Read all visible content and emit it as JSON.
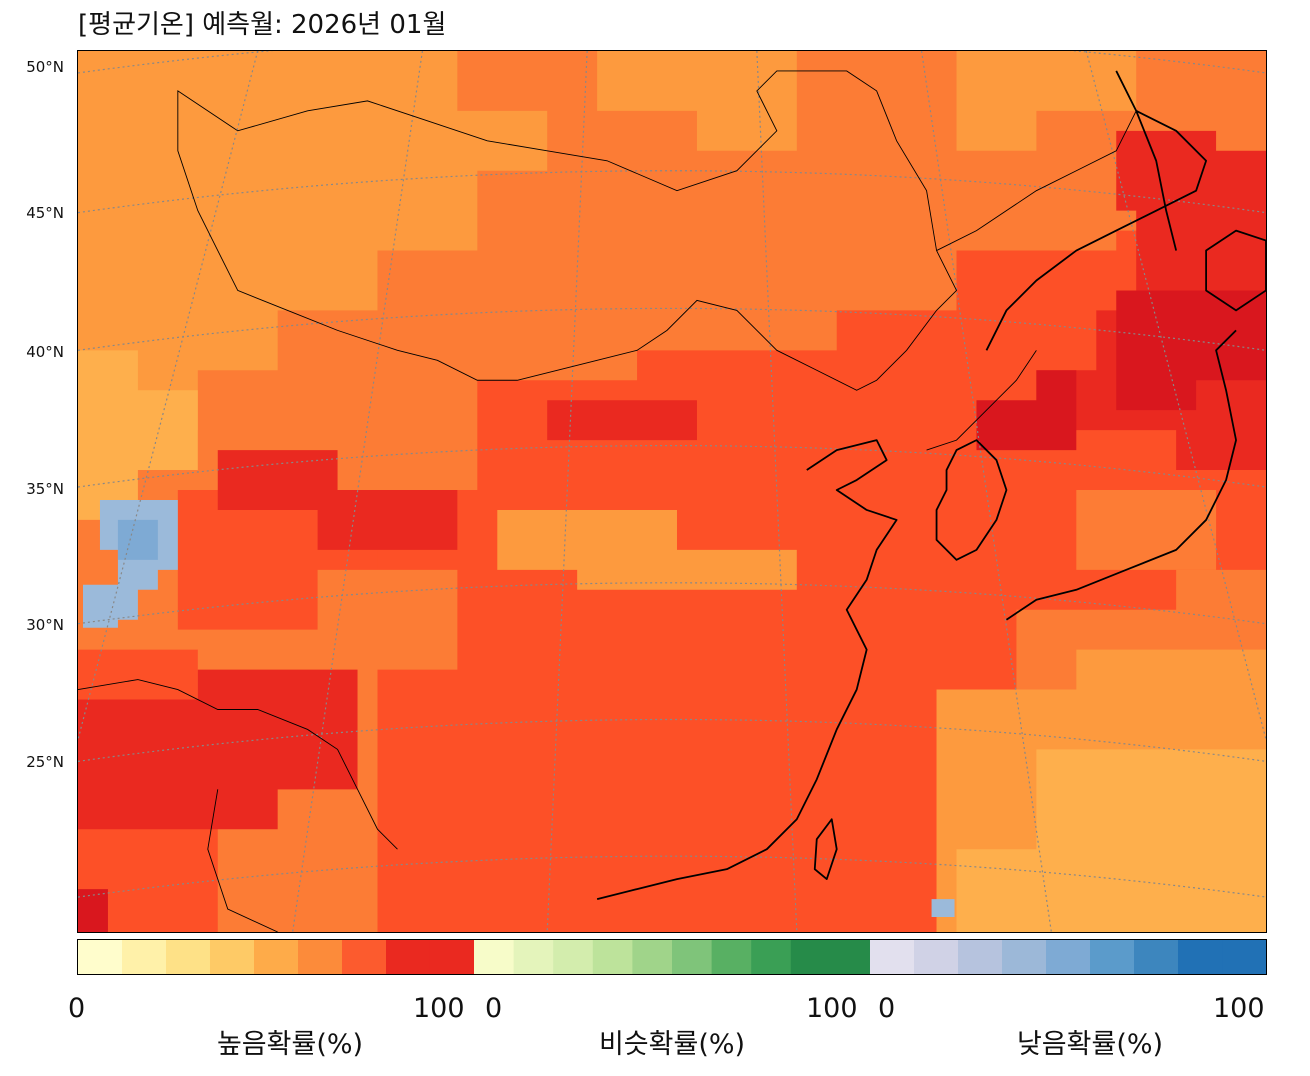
{
  "title": "[평균기온] 예측월: 2026년 01월",
  "lat_labels": [
    "50°N",
    "45°N",
    "40°N",
    "35°N",
    "30°N",
    "25°N"
  ],
  "colorbars": [
    {
      "label": "높음확률(%)",
      "min_label": "0",
      "max_label": "100",
      "colors": [
        "#fffdcc",
        "#fff1a9",
        "#fee187",
        "#feca66",
        "#feab49",
        "#fc8b3a",
        "#fc5b2e",
        "#ea2920",
        "#ea2920"
      ]
    },
    {
      "label": "비슷확률(%)",
      "min_label": "0",
      "max_label": "100",
      "colors": [
        "#f7fcc9",
        "#e4f4bb",
        "#d3edad",
        "#bde39b",
        "#a0d48a",
        "#7fc47a",
        "#58b063",
        "#3a9f55",
        "#268b49",
        "#268b49"
      ]
    },
    {
      "label": "낮음확률(%)",
      "min_label": "0",
      "max_label": "100",
      "colors": [
        "#e2e0ee",
        "#d0d2e6",
        "#b6c3de",
        "#9cb8d8",
        "#7eaad4",
        "#5b9bcb",
        "#3d86be",
        "#2171b5",
        "#2171b5"
      ]
    }
  ],
  "map": {
    "dominant_category": "높음확률",
    "palette": {
      "very_high": "#d9171e",
      "high": "#ea2920",
      "mid_high": "#fd5027",
      "mid": "#fc7c35",
      "mid_low": "#fd9a3e",
      "low": "#feaf4c",
      "below_normal_patch": "#9bbada"
    }
  }
}
